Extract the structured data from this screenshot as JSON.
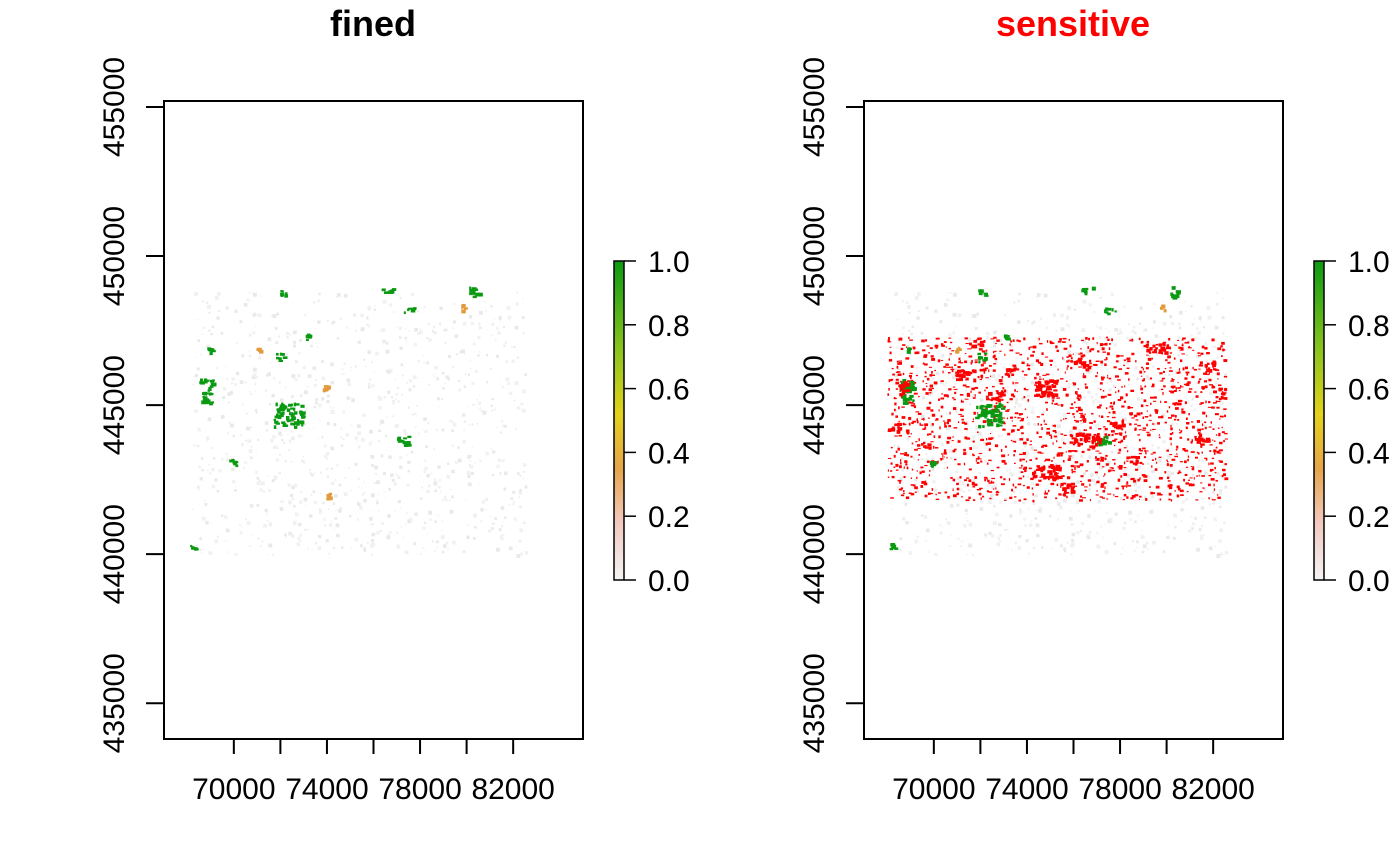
{
  "panels": [
    {
      "title": "fined",
      "title_color": "#000000",
      "x_ticks": [
        70000,
        74000,
        78000,
        82000
      ],
      "x_tick_labels": [
        "70000",
        "74000",
        "78000",
        "82000"
      ],
      "y_ticks": [
        435000,
        440000,
        445000,
        450000,
        455000
      ],
      "y_tick_labels": [
        "435000",
        "440000",
        "445000",
        "450000",
        "455000"
      ],
      "xlim": [
        67000,
        85000
      ],
      "ylim": [
        433800,
        455200
      ],
      "data_extent": {
        "x": [
          68200,
          82500
        ],
        "y": [
          440000,
          448800
        ]
      },
      "legend": {
        "tick_values": [
          0.0,
          0.2,
          0.4,
          0.6,
          0.8,
          1.0
        ],
        "tick_labels": [
          "0.0",
          "0.2",
          "0.4",
          "0.6",
          "0.8",
          "1.0"
        ]
      },
      "features": [
        {
          "cls": "green",
          "x": 71800,
          "y": 446500,
          "w": 400,
          "h": 300
        },
        {
          "cls": "green",
          "x": 71700,
          "y": 444300,
          "w": 1200,
          "h": 800
        },
        {
          "cls": "green",
          "x": 77300,
          "y": 448100,
          "w": 500,
          "h": 200
        },
        {
          "cls": "green",
          "x": 80100,
          "y": 448600,
          "w": 400,
          "h": 400
        },
        {
          "cls": "green",
          "x": 76300,
          "y": 448800,
          "w": 500,
          "h": 200
        },
        {
          "cls": "green",
          "x": 68500,
          "y": 445100,
          "w": 600,
          "h": 800
        },
        {
          "cls": "green",
          "x": 77000,
          "y": 443700,
          "w": 500,
          "h": 300
        },
        {
          "cls": "green",
          "x": 68800,
          "y": 446800,
          "w": 300,
          "h": 200
        },
        {
          "cls": "green",
          "x": 71900,
          "y": 448700,
          "w": 300,
          "h": 200
        },
        {
          "cls": "green",
          "x": 69800,
          "y": 443000,
          "w": 300,
          "h": 200
        },
        {
          "cls": "green",
          "x": 73000,
          "y": 447200,
          "w": 300,
          "h": 200
        },
        {
          "cls": "green",
          "x": 68100,
          "y": 440200,
          "w": 200,
          "h": 200
        },
        {
          "cls": "orange",
          "x": 70900,
          "y": 446800,
          "w": 200,
          "h": 200
        },
        {
          "cls": "orange",
          "x": 79700,
          "y": 448200,
          "w": 200,
          "h": 200
        },
        {
          "cls": "orange",
          "x": 73800,
          "y": 445500,
          "w": 200,
          "h": 200
        },
        {
          "cls": "orange",
          "x": 73900,
          "y": 441900,
          "w": 200,
          "h": 200
        }
      ]
    },
    {
      "title": "sensitive",
      "title_color": "#ff0000",
      "x_ticks": [
        70000,
        74000,
        78000,
        82000
      ],
      "x_tick_labels": [
        "70000",
        "74000",
        "78000",
        "82000"
      ],
      "y_ticks": [
        435000,
        440000,
        445000,
        450000,
        455000
      ],
      "y_tick_labels": [
        "435000",
        "440000",
        "445000",
        "450000",
        "455000"
      ],
      "xlim": [
        67000,
        85000
      ],
      "ylim": [
        433800,
        455200
      ],
      "data_extent": {
        "x": [
          68200,
          82500
        ],
        "y": [
          440000,
          448800
        ]
      },
      "legend": {
        "tick_values": [
          0.0,
          0.2,
          0.4,
          0.6,
          0.8,
          1.0
        ],
        "tick_labels": [
          "0.0",
          "0.2",
          "0.4",
          "0.6",
          "0.8",
          "1.0"
        ]
      },
      "sensitive_region": {
        "x": [
          68000,
          82500
        ],
        "y": [
          441800,
          447300
        ]
      },
      "features": [
        {
          "cls": "green",
          "x": 71800,
          "y": 446500,
          "w": 400,
          "h": 300
        },
        {
          "cls": "green",
          "x": 71700,
          "y": 444300,
          "w": 1200,
          "h": 800
        },
        {
          "cls": "green",
          "x": 77300,
          "y": 448100,
          "w": 500,
          "h": 200
        },
        {
          "cls": "green",
          "x": 80100,
          "y": 448600,
          "w": 400,
          "h": 400
        },
        {
          "cls": "green",
          "x": 76300,
          "y": 448800,
          "w": 500,
          "h": 200
        },
        {
          "cls": "green",
          "x": 68500,
          "y": 445100,
          "w": 600,
          "h": 800
        },
        {
          "cls": "green",
          "x": 77000,
          "y": 443700,
          "w": 500,
          "h": 300
        },
        {
          "cls": "green",
          "x": 68800,
          "y": 446800,
          "w": 300,
          "h": 200
        },
        {
          "cls": "green",
          "x": 71900,
          "y": 448700,
          "w": 300,
          "h": 200
        },
        {
          "cls": "green",
          "x": 69800,
          "y": 443000,
          "w": 300,
          "h": 200
        },
        {
          "cls": "green",
          "x": 73000,
          "y": 447200,
          "w": 300,
          "h": 200
        },
        {
          "cls": "green",
          "x": 68100,
          "y": 440200,
          "w": 200,
          "h": 200
        },
        {
          "cls": "orange",
          "x": 70900,
          "y": 446800,
          "w": 200,
          "h": 200
        },
        {
          "cls": "orange",
          "x": 79700,
          "y": 448200,
          "w": 200,
          "h": 200
        },
        {
          "cls": "red",
          "x": 70900,
          "y": 445800,
          "w": 800,
          "h": 400
        },
        {
          "cls": "red",
          "x": 74300,
          "y": 445300,
          "w": 1000,
          "h": 600
        },
        {
          "cls": "red",
          "x": 68500,
          "y": 445400,
          "w": 400,
          "h": 400
        },
        {
          "cls": "red",
          "x": 75800,
          "y": 443700,
          "w": 1300,
          "h": 400
        },
        {
          "cls": "red",
          "x": 74200,
          "y": 442600,
          "w": 1200,
          "h": 400
        },
        {
          "cls": "red",
          "x": 76000,
          "y": 446300,
          "w": 700,
          "h": 300
        },
        {
          "cls": "red",
          "x": 79000,
          "y": 446800,
          "w": 1000,
          "h": 300
        },
        {
          "cls": "red",
          "x": 72200,
          "y": 445200,
          "w": 700,
          "h": 300
        },
        {
          "cls": "red",
          "x": 81200,
          "y": 443800,
          "w": 500,
          "h": 300
        },
        {
          "cls": "red",
          "x": 75300,
          "y": 442000,
          "w": 600,
          "h": 400
        },
        {
          "cls": "red",
          "x": 77400,
          "y": 444200,
          "w": 700,
          "h": 300
        },
        {
          "cls": "red",
          "x": 71500,
          "y": 447000,
          "w": 500,
          "h": 200
        },
        {
          "cls": "red",
          "x": 81500,
          "y": 446200,
          "w": 500,
          "h": 300
        },
        {
          "cls": "red",
          "x": 82200,
          "y": 445200,
          "w": 300,
          "h": 400
        },
        {
          "cls": "red",
          "x": 68000,
          "y": 444100,
          "w": 500,
          "h": 400
        },
        {
          "cls": "red",
          "x": 69200,
          "y": 443600,
          "w": 600,
          "h": 200
        },
        {
          "cls": "red",
          "x": 73000,
          "y": 446000,
          "w": 500,
          "h": 300
        },
        {
          "cls": "red",
          "x": 78300,
          "y": 443000,
          "w": 400,
          "h": 300
        }
      ]
    }
  ]
}
